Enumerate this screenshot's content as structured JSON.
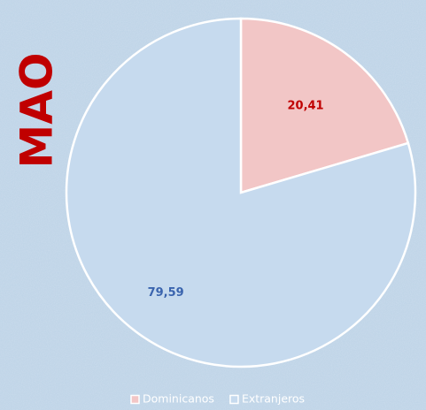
{
  "chart_data": {
    "type": "pie",
    "title": "MAO",
    "categories": [
      "Dominicanos",
      "Extranjeros"
    ],
    "values": [
      20.41,
      79.59
    ],
    "value_labels": [
      "20,41",
      "79,59"
    ],
    "colors": [
      "#f2c6c6",
      "#c6daee"
    ],
    "label_colors": [
      "#c00000",
      "#3a64ae"
    ],
    "legend": "bottom"
  }
}
